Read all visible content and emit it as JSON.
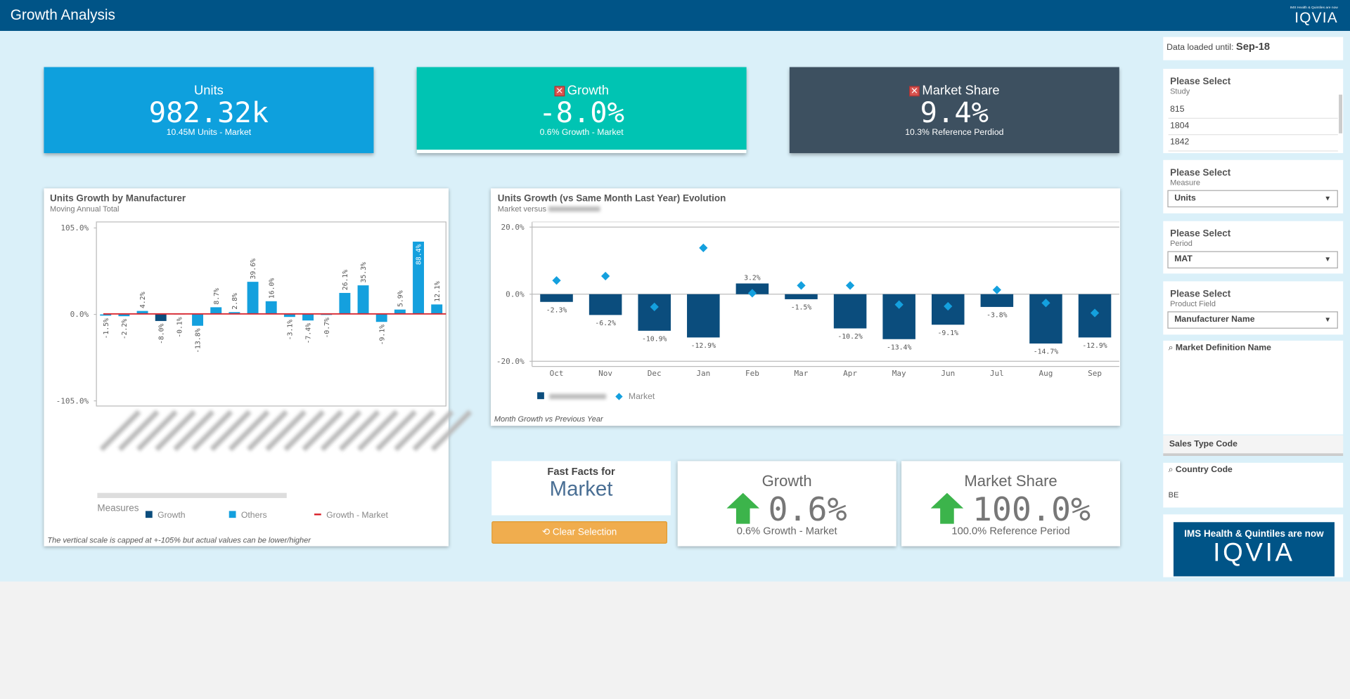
{
  "header": {
    "title": "Growth Analysis",
    "logo_note": "IMS Health & Quintiles are now",
    "logo": "IQVIA"
  },
  "kpis": [
    {
      "label": "Units",
      "value": "982.32k",
      "sub": "10.45M Units - Market"
    },
    {
      "label": "Growth",
      "value": "-8.0%",
      "sub": "0.6% Growth - Market"
    },
    {
      "label": "Market Share",
      "value": "9.4%",
      "sub": "10.3% Reference Perdiod"
    }
  ],
  "chart_data": [
    {
      "type": "bar",
      "title": "Units Growth by Manufacturer",
      "subtitle": "Moving Annual Total",
      "categories": [
        null,
        null,
        null,
        null,
        null,
        null,
        null,
        null,
        null,
        null,
        null,
        null,
        null,
        null,
        null,
        null,
        null,
        null,
        null
      ],
      "series": [
        {
          "name": "Growth",
          "color": "#0b4d7d",
          "values": [
            null,
            null,
            null,
            -8.0,
            null,
            null,
            null,
            null,
            null,
            null,
            null,
            null,
            null,
            null,
            null,
            null,
            null,
            null,
            null
          ],
          "value_labels": [
            null,
            null,
            null,
            "-8.0%",
            null,
            null,
            null,
            null,
            null,
            null,
            null,
            null,
            null,
            null,
            null,
            null,
            null,
            null,
            null
          ]
        },
        {
          "name": "Others",
          "color": "#14a0de",
          "values": [
            -1.5,
            -2.2,
            4.2,
            null,
            -0.1,
            -13.8,
            8.7,
            2.8,
            39.6,
            16.0,
            -3.1,
            -7.4,
            -0.7,
            26.1,
            35.3,
            -9.1,
            5.9,
            88.4,
            12.1
          ],
          "value_labels": [
            "-1.5%",
            "-2.2%",
            "4.2%",
            null,
            "-0.1%",
            "-13.8%",
            "8.7%",
            "2.8%",
            "39.6%",
            "16.0%",
            "-3.1%",
            "-7.4%",
            "-0.7%",
            "26.1%",
            "35.3%",
            "-9.1%",
            "5.9%",
            "88.4%",
            "12.1%"
          ]
        }
      ],
      "reference_lines": [
        {
          "name": "Growth - Market",
          "color": "#d9262e",
          "value": 0.6
        }
      ],
      "ylim": [
        -105,
        105
      ],
      "yticks": [
        {
          "value": -105,
          "label": "-105.0%"
        },
        {
          "value": 0,
          "label": "0.0%"
        },
        {
          "value": 105,
          "label": "105.0%"
        }
      ],
      "grid": false,
      "legend_title": "Measures",
      "note": "The vertical scale is capped at +-105% but actual values can be lower/higher"
    },
    {
      "type": "bar",
      "title": "Units Growth (vs Same Month Last Year) Evolution",
      "subtitle": "Market versus",
      "categories": [
        "Oct",
        "Nov",
        "Dec",
        "Jan",
        "Feb",
        "Mar",
        "Apr",
        "May",
        "Jun",
        "Jul",
        "Aug",
        "Sep"
      ],
      "series": [
        {
          "color": "#0b4d7d",
          "values": [
            -2.3,
            -6.2,
            -10.9,
            -12.9,
            3.2,
            -1.5,
            -10.2,
            -13.4,
            -9.1,
            -3.8,
            -14.7,
            -12.9
          ],
          "value_labels": [
            "-2.3%",
            "-6.2%",
            "-10.9%",
            "-12.9%",
            "3.2%",
            "-1.5%",
            "-10.2%",
            "-13.4%",
            "-9.1%",
            "-3.8%",
            "-14.7%",
            "-12.9%"
          ]
        },
        {
          "name": "Market",
          "color": "#14a0de",
          "marker": "diamond",
          "values": [
            4.1,
            5.4,
            -3.8,
            13.8,
            0.3,
            2.6,
            2.6,
            -3.1,
            -3.6,
            1.3,
            -2.6,
            -5.6
          ]
        }
      ],
      "ylim": [
        -20,
        20
      ],
      "yticks": [
        {
          "value": -20,
          "label": "-20.0%"
        },
        {
          "value": 0,
          "label": "0.0%"
        },
        {
          "value": 20,
          "label": "20.0%"
        }
      ],
      "grid": true,
      "note": "Month Growth vs Previous Year"
    }
  ],
  "fast_facts": {
    "title": "Fast Facts for",
    "subject": "Market",
    "button": "Clear Selection"
  },
  "fact_cards": [
    {
      "label": "Growth",
      "value": "0.6%",
      "sub": "0.6% Growth - Market"
    },
    {
      "label": "Market Share",
      "value": "100.0%",
      "sub": "100.0% Reference Period"
    }
  ],
  "sidebar": {
    "data_loaded_label": "Data loaded until:",
    "data_loaded_value": "Sep-18",
    "study": {
      "title": "Please Select",
      "subtitle": "Study",
      "options": [
        "815",
        "1804",
        "1842"
      ]
    },
    "measure": {
      "title": "Please Select",
      "subtitle": "Measure",
      "selected": "Units"
    },
    "period": {
      "title": "Please Select",
      "subtitle": "Period",
      "selected": "MAT"
    },
    "product_field": {
      "title": "Please Select",
      "subtitle": "Product Field",
      "selected": "Manufacturer Name"
    },
    "market_definition": "Market Definition Name",
    "sales_type": "Sales Type Code",
    "country": {
      "label": "Country Code",
      "value": "BE"
    },
    "banner": {
      "note": "IMS Health & Quintiles are now",
      "logo": "IQVIA"
    }
  }
}
